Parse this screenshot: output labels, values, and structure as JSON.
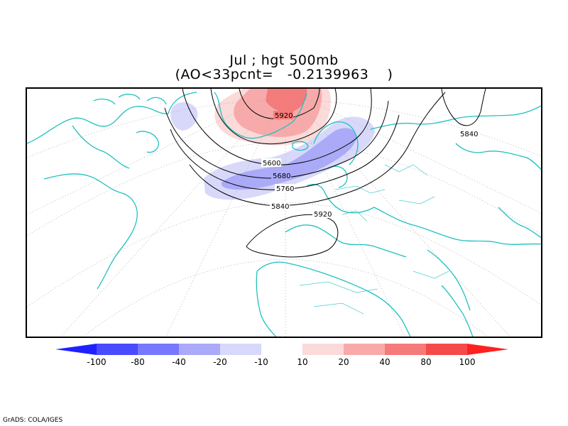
{
  "title": {
    "line1": "Jul ; hgt 500mb",
    "line2": "(AO<33pcnt=   -0.2139963    )"
  },
  "contour_labels": [
    "5920",
    "5600",
    "5680",
    "5760",
    "5840",
    "5920",
    "5840"
  ],
  "colorbar": {
    "labels": [
      "-100",
      "-80",
      "-40",
      "-20",
      "-10",
      "10",
      "20",
      "40",
      "80",
      "100"
    ],
    "colors": [
      "#2020ff",
      "#4a4aff",
      "#7777ff",
      "#aaaaf8",
      "#d8d8fa",
      "#ffffff",
      "#fbdada",
      "#f8aaaa",
      "#f57a7a",
      "#f54a4a",
      "#ff2020"
    ]
  },
  "footer": "GrADS: COLA/IGES"
}
